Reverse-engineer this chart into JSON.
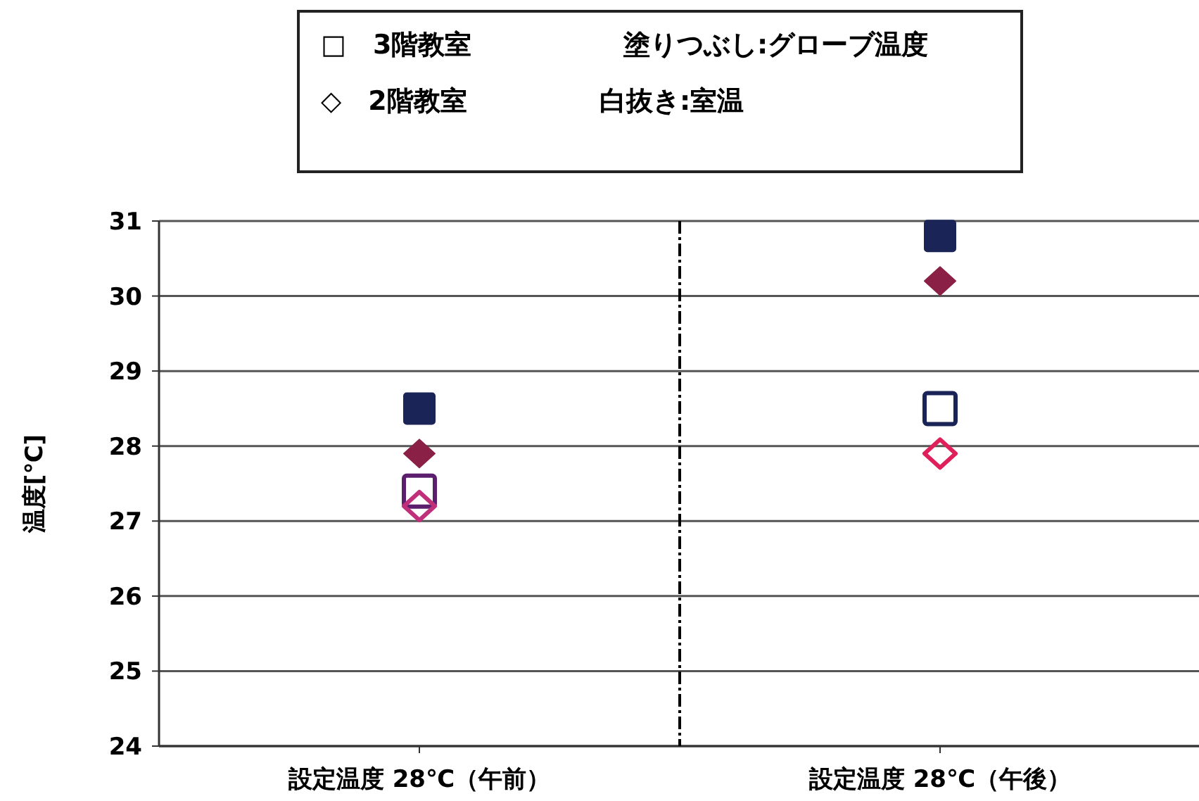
{
  "chart_data": {
    "type": "scatter",
    "ylabel": "温度[℃]",
    "categories": [
      "設定温度 28℃（午前）",
      "設定温度 28℃（午後）"
    ],
    "series": [
      {
        "color": "#1b2456",
        "marker": "square",
        "values": [
          28.5,
          30.8
        ]
      },
      {
        "color": "#8b2046",
        "marker": "diamond",
        "values": [
          27.9,
          30.2
        ]
      },
      {
        "colors": [
          "#5b1f6e",
          "#1b2456"
        ],
        "marker": "square",
        "values": [
          27.4,
          28.5
        ]
      },
      {
        "colors": [
          "#c0307a",
          "#e0205a"
        ],
        "marker": "diamond",
        "values": [
          27.2,
          27.9
        ]
      }
    ],
    "ylim": [
      24,
      31
    ],
    "yticks": [
      24,
      25,
      26,
      27,
      28,
      29,
      30,
      31
    ],
    "grid": "y",
    "annotations": [
      "□　3階教室",
      "◇　2階教室",
      "塗りつぶし:グローブ温度",
      "白抜き:室温"
    ]
  }
}
